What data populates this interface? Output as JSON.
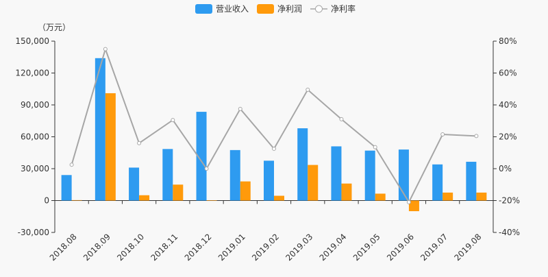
{
  "legend": {
    "items": [
      {
        "label": "营业收入",
        "kind": "bar",
        "color": "#2e9bf0"
      },
      {
        "label": "净利润",
        "kind": "bar",
        "color": "#ff9a0b"
      },
      {
        "label": "净利率",
        "kind": "line",
        "color": "#a6a6a6"
      }
    ]
  },
  "chart_data": {
    "type": "bar",
    "unit_label": "（万元）",
    "categories": [
      "2018.08",
      "2018.09",
      "2018.10",
      "2018.11",
      "2018.12",
      "2019.01",
      "2019.02",
      "2019.03",
      "2019.04",
      "2019.05",
      "2019.06",
      "2019.07",
      "2019.08"
    ],
    "series": [
      {
        "name": "营业收入",
        "type": "bar",
        "axis": "left",
        "color": "#2e9bf0",
        "values": [
          24000,
          134000,
          31000,
          48500,
          83500,
          47500,
          37500,
          68000,
          51000,
          47000,
          48000,
          34000,
          36500
        ]
      },
      {
        "name": "净利润",
        "type": "bar",
        "axis": "left",
        "color": "#ff9a0b",
        "values": [
          400,
          101000,
          5000,
          15000,
          200,
          18000,
          4500,
          33500,
          16000,
          6500,
          -10000,
          7500,
          7500
        ]
      },
      {
        "name": "净利率",
        "type": "line",
        "axis": "right",
        "color": "#a6a6a6",
        "unit": "%",
        "values": [
          2.5,
          75,
          16,
          30.5,
          0,
          37.5,
          12.5,
          49.5,
          31,
          13.5,
          -21,
          21.5,
          20.5
        ]
      }
    ],
    "y_left": {
      "min": -30000,
      "max": 150000,
      "ticks": [
        -30000,
        0,
        30000,
        60000,
        90000,
        120000,
        150000
      ],
      "tick_labels": [
        "-30,000",
        "0",
        "30,000",
        "60,000",
        "90,000",
        "120,000",
        "150,000"
      ]
    },
    "y_right": {
      "min": -40,
      "max": 80,
      "ticks": [
        -40,
        -20,
        0,
        20,
        40,
        60,
        80
      ],
      "tick_labels": [
        "-40%",
        "-20%",
        "0%",
        "20%",
        "40%",
        "60%",
        "80%"
      ]
    },
    "grid": false,
    "legend_position": "top-center"
  }
}
